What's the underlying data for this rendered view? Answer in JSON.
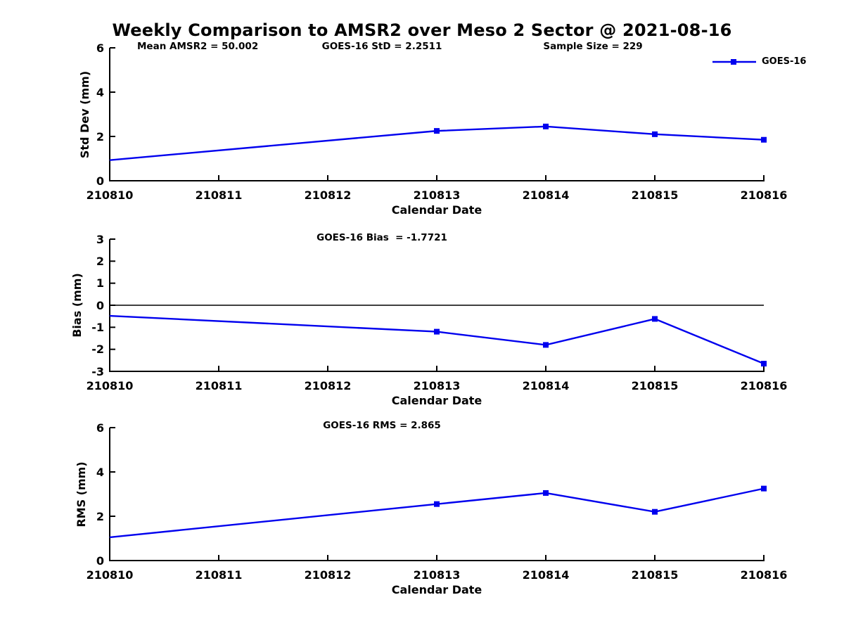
{
  "figure": {
    "title": "Weekly Comparison to AMSR2 over Meso 2 Sector @ 2021-08-16",
    "legend": {
      "label": "GOES-16"
    },
    "colors": {
      "series": "#0000ee",
      "axis": "#000000",
      "zero_line": "#000000",
      "background": "#ffffff"
    }
  },
  "chart_data": [
    {
      "type": "line",
      "ylabel": "Std Dev (mm)",
      "xlabel": "Calendar Date",
      "ylim": [
        0,
        6
      ],
      "yticks": [
        0,
        2,
        4,
        6
      ],
      "xlim": [
        210810,
        210816
      ],
      "xticks": [
        210810,
        210811,
        210812,
        210813,
        210814,
        210815,
        210816
      ],
      "annotations": [
        "Mean AMSR2 = 50.002",
        "GOES-16 StD = 2.2511",
        "Sample Size = 229"
      ],
      "zero_line": false,
      "grid": false,
      "legend_position": "top-right",
      "series": [
        {
          "name": "GOES-16",
          "color": "#0000ee",
          "marker": "square",
          "x": [
            210810,
            210813,
            210814,
            210815,
            210816
          ],
          "y": [
            0.93,
            2.25,
            2.45,
            2.1,
            1.85
          ],
          "marker_visible": [
            false,
            true,
            true,
            true,
            true
          ]
        }
      ]
    },
    {
      "type": "line",
      "ylabel": "Bias (mm)",
      "xlabel": "Calendar Date",
      "ylim": [
        -3,
        3
      ],
      "yticks": [
        -3,
        -2,
        -1,
        0,
        1,
        2,
        3
      ],
      "xlim": [
        210810,
        210816
      ],
      "xticks": [
        210810,
        210811,
        210812,
        210813,
        210814,
        210815,
        210816
      ],
      "annotations": [
        "GOES-16 Bias  = -1.7721"
      ],
      "zero_line": true,
      "grid": false,
      "series": [
        {
          "name": "GOES-16",
          "color": "#0000ee",
          "marker": "square",
          "x": [
            210810,
            210813,
            210814,
            210815,
            210816
          ],
          "y": [
            -0.48,
            -1.2,
            -1.8,
            -0.62,
            -2.65
          ],
          "marker_visible": [
            false,
            true,
            true,
            true,
            true
          ]
        }
      ]
    },
    {
      "type": "line",
      "ylabel": "RMS (mm)",
      "xlabel": "Calendar Date",
      "ylim": [
        0,
        6
      ],
      "yticks": [
        0,
        2,
        4,
        6
      ],
      "xlim": [
        210810,
        210816
      ],
      "xticks": [
        210810,
        210811,
        210812,
        210813,
        210814,
        210815,
        210816
      ],
      "annotations": [
        "GOES-16 RMS = 2.865"
      ],
      "zero_line": false,
      "grid": false,
      "series": [
        {
          "name": "GOES-16",
          "color": "#0000ee",
          "marker": "square",
          "x": [
            210810,
            210813,
            210814,
            210815,
            210816
          ],
          "y": [
            1.05,
            2.55,
            3.05,
            2.2,
            3.25
          ],
          "marker_visible": [
            false,
            true,
            true,
            true,
            true
          ]
        }
      ]
    }
  ]
}
